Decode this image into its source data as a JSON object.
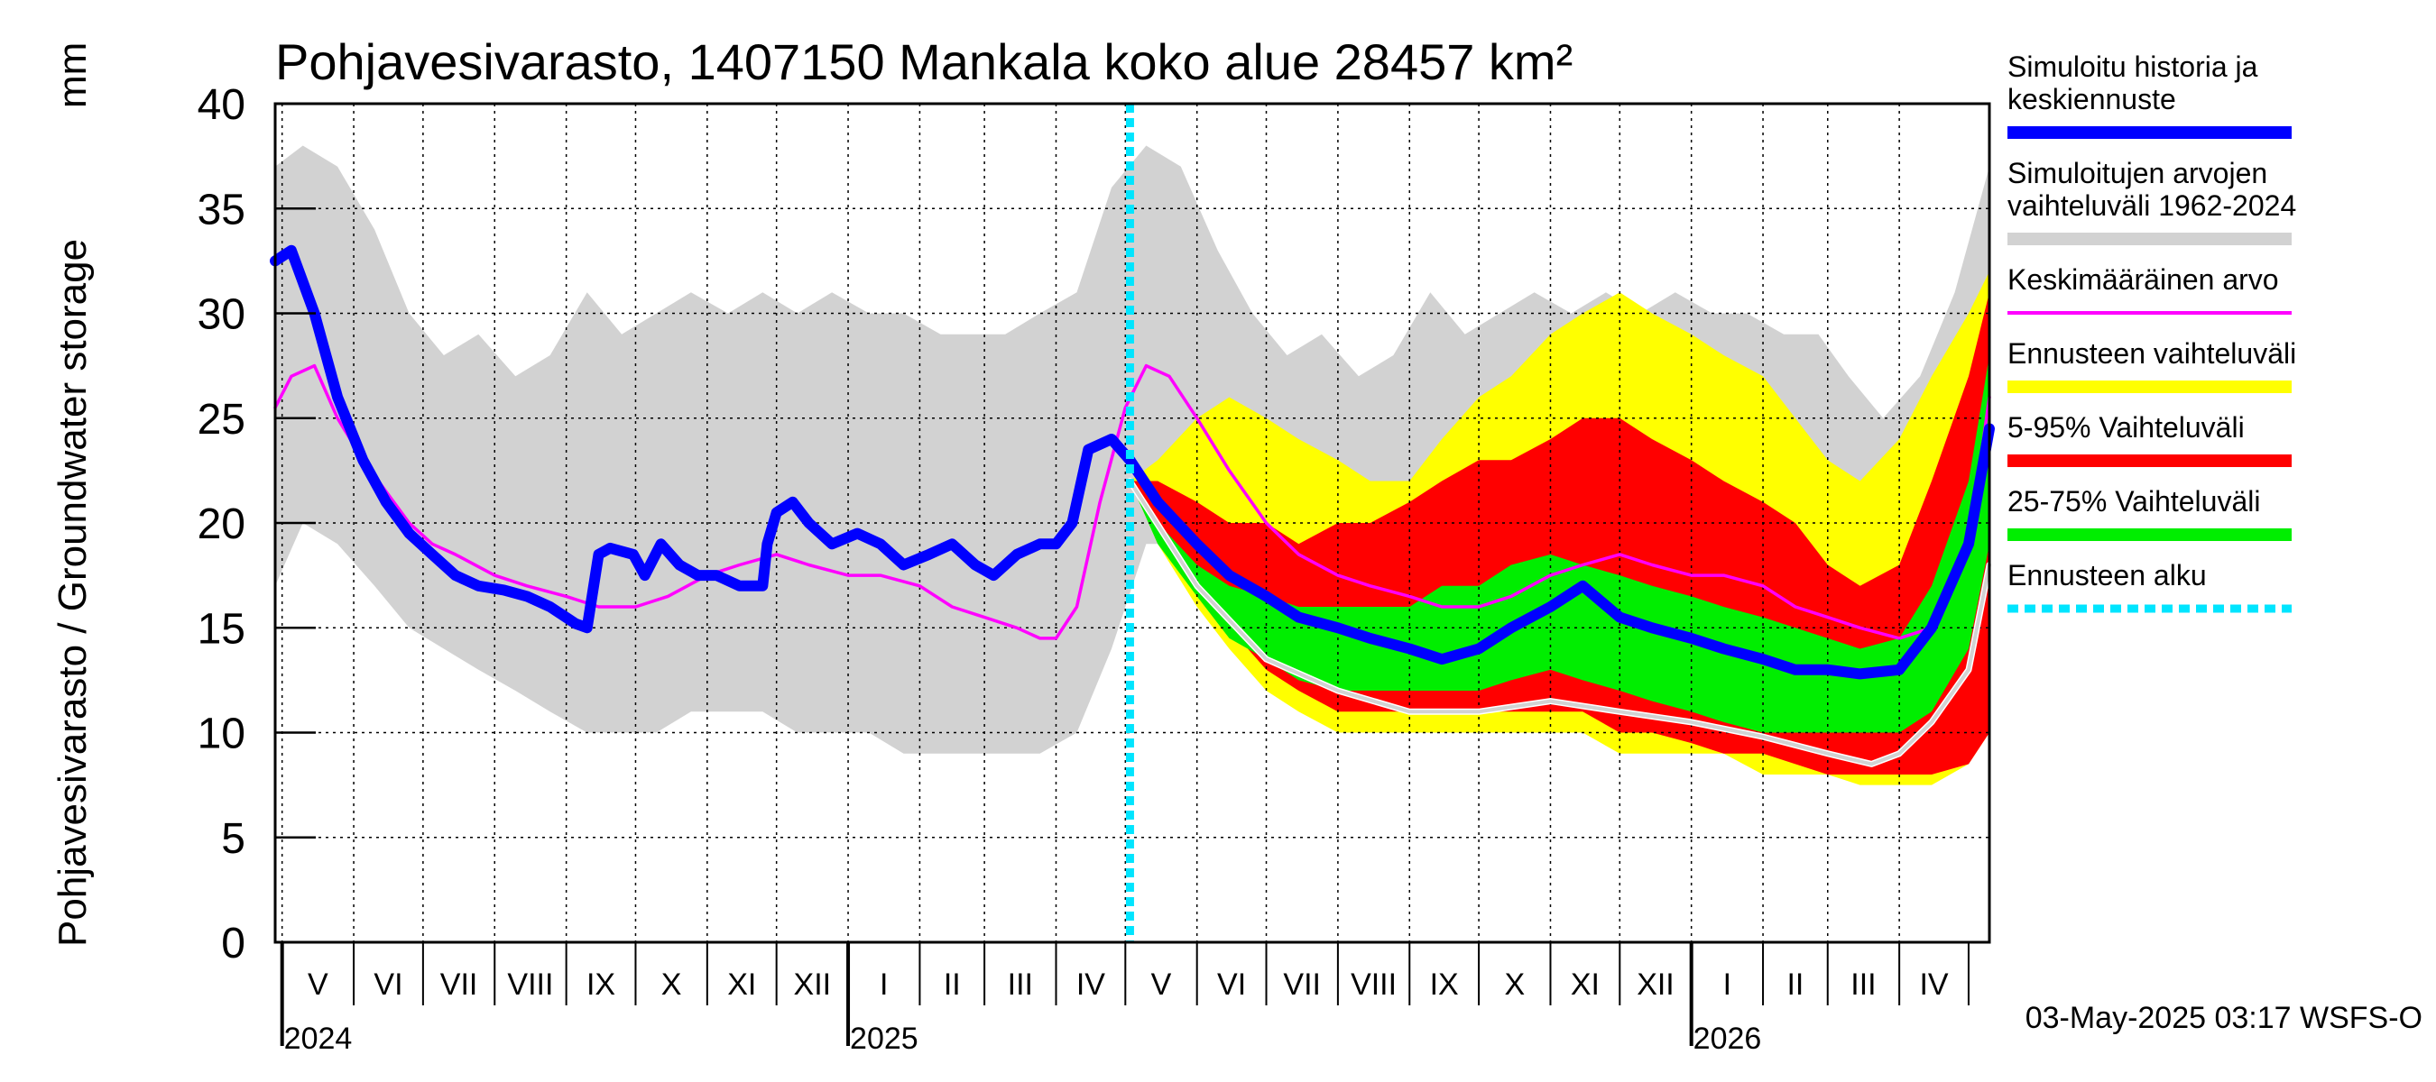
{
  "colors": {
    "history": "#0000ff",
    "simRange": "#d2d2d2",
    "mean": "#ff00ff",
    "forecastRange": "#ffff00",
    "p5_95": "#ff0000",
    "p25_75": "#00ee00",
    "forecastStart": "#00e5ff",
    "grid": "#000000"
  },
  "chart_data": {
    "type": "area",
    "title": "Pohjavesivarasto, 1407150 Mankala koko alue 28457 km²",
    "ylabel": "Pohjavesivarasto / Groundwater storage",
    "yunit": "mm",
    "ylim": [
      0,
      40
    ],
    "yticks": [
      0,
      5,
      10,
      15,
      20,
      25,
      30,
      35,
      40
    ],
    "xlim": [
      "2024-04-28",
      "2026-05-10"
    ],
    "forecast_start": "2025-05-03",
    "months": [
      {
        "label": "V",
        "start": "2024-05-01"
      },
      {
        "label": "VI",
        "start": "2024-06-01"
      },
      {
        "label": "VII",
        "start": "2024-07-01"
      },
      {
        "label": "VIII",
        "start": "2024-08-01"
      },
      {
        "label": "IX",
        "start": "2024-09-01"
      },
      {
        "label": "X",
        "start": "2024-10-01"
      },
      {
        "label": "XI",
        "start": "2024-11-01"
      },
      {
        "label": "XII",
        "start": "2024-12-01"
      },
      {
        "label": "I",
        "start": "2025-01-01"
      },
      {
        "label": "II",
        "start": "2025-02-01"
      },
      {
        "label": "III",
        "start": "2025-03-01"
      },
      {
        "label": "IV",
        "start": "2025-04-01"
      },
      {
        "label": "V",
        "start": "2025-05-01"
      },
      {
        "label": "VI",
        "start": "2025-06-01"
      },
      {
        "label": "VII",
        "start": "2025-07-01"
      },
      {
        "label": "VIII",
        "start": "2025-08-01"
      },
      {
        "label": "IX",
        "start": "2025-09-01"
      },
      {
        "label": "X",
        "start": "2025-10-01"
      },
      {
        "label": "XI",
        "start": "2025-11-01"
      },
      {
        "label": "XII",
        "start": "2025-12-01"
      },
      {
        "label": "I",
        "start": "2026-01-01"
      },
      {
        "label": "II",
        "start": "2026-02-01"
      },
      {
        "label": "III",
        "start": "2026-03-01"
      },
      {
        "label": "IV",
        "start": "2026-04-01"
      }
    ],
    "years": [
      {
        "label": "2024",
        "start": "2024-05-01"
      },
      {
        "label": "2025",
        "start": "2025-01-01"
      },
      {
        "label": "2026",
        "start": "2026-01-01"
      }
    ],
    "sim_range": {
      "name": "Simuloitujen arvojen vaihteluväli 1962-2024",
      "dates": [
        "2024-04-28",
        "2024-05-10",
        "2024-05-25",
        "2024-06-10",
        "2024-06-25",
        "2024-07-10",
        "2024-07-25",
        "2024-08-10",
        "2024-08-25",
        "2024-09-10",
        "2024-09-25",
        "2024-10-10",
        "2024-10-25",
        "2024-11-10",
        "2024-11-25",
        "2024-12-10",
        "2024-12-25",
        "2025-01-10",
        "2025-01-25",
        "2025-02-10",
        "2025-02-25",
        "2025-03-10",
        "2025-03-25",
        "2025-04-10",
        "2025-04-25",
        "2025-05-10",
        "2025-05-25",
        "2025-06-10",
        "2025-06-25",
        "2025-07-10",
        "2025-07-25",
        "2025-08-10",
        "2025-08-25",
        "2025-09-10",
        "2025-09-25",
        "2025-10-10",
        "2025-10-25",
        "2025-11-10",
        "2025-11-25",
        "2025-12-10",
        "2025-12-25",
        "2026-01-10",
        "2026-01-25",
        "2026-02-10",
        "2026-02-25",
        "2026-03-10",
        "2026-03-25",
        "2026-04-10",
        "2026-04-25",
        "2026-05-10"
      ],
      "upper": [
        37,
        38,
        37,
        34,
        30,
        28,
        29,
        27,
        28,
        31,
        29,
        30,
        31,
        30,
        31,
        30,
        31,
        30,
        30,
        29,
        29,
        29,
        30,
        31,
        36,
        38,
        37,
        33,
        30,
        28,
        29,
        27,
        28,
        31,
        29,
        30,
        31,
        30,
        31,
        30,
        31,
        30,
        30,
        29,
        29,
        27,
        25,
        27,
        31,
        37
      ],
      "lower": [
        17,
        20,
        19,
        17,
        15,
        14,
        13,
        12,
        11,
        10,
        10,
        10,
        11,
        11,
        11,
        10,
        10,
        10,
        9,
        9,
        9,
        9,
        9,
        10,
        14,
        19,
        19,
        17,
        15,
        14,
        13,
        12,
        11,
        10,
        10,
        10,
        11,
        11,
        11,
        10,
        10,
        10,
        9,
        9,
        9,
        9,
        9,
        9,
        11,
        17
      ]
    },
    "forecast_dates": [
      "2025-05-03",
      "2025-05-15",
      "2025-06-01",
      "2025-06-15",
      "2025-07-01",
      "2025-07-15",
      "2025-08-01",
      "2025-08-15",
      "2025-09-01",
      "2025-09-15",
      "2025-10-01",
      "2025-10-15",
      "2025-11-01",
      "2025-11-15",
      "2025-12-01",
      "2025-12-15",
      "2026-01-01",
      "2026-01-15",
      "2026-02-01",
      "2026-02-15",
      "2026-03-01",
      "2026-03-15",
      "2026-04-01",
      "2026-04-15",
      "2026-05-01",
      "2026-05-10"
    ],
    "forecast_range": {
      "name": "Ennusteen vaihteluväli",
      "upper": [
        22,
        23,
        25,
        26,
        25,
        24,
        23,
        22,
        22,
        24,
        26,
        27,
        29,
        30,
        31,
        30,
        29,
        28,
        27,
        25,
        23,
        22,
        24,
        27,
        30,
        32
      ],
      "lower": [
        22,
        19,
        16,
        14,
        12,
        11,
        10,
        10,
        10,
        10,
        10,
        10,
        10,
        10,
        9,
        9,
        9,
        9,
        8,
        8,
        8,
        7.5,
        7.5,
        7.5,
        8.5,
        10
      ]
    },
    "p5_95": {
      "name": "5-95% Vaihteluväli",
      "upper": [
        22,
        22,
        21,
        20,
        20,
        19,
        20,
        20,
        21,
        22,
        23,
        23,
        24,
        25,
        25,
        24,
        23,
        22,
        21,
        20,
        18,
        17,
        18,
        22,
        27,
        31
      ],
      "lower": [
        22,
        20,
        17,
        15,
        13,
        12,
        11,
        11,
        11,
        11,
        11,
        11,
        11,
        11,
        10,
        10,
        9.5,
        9,
        9,
        8.5,
        8,
        8,
        8,
        8,
        8.5,
        10
      ]
    },
    "p25_75": {
      "name": "25-75% Vaihteluväli",
      "upper": [
        22,
        20,
        18,
        17,
        16.5,
        16,
        16,
        16,
        16,
        17,
        17,
        18,
        18.5,
        18,
        17.5,
        17,
        16.5,
        16,
        15.5,
        15,
        14.5,
        14,
        14.5,
        17,
        22,
        28
      ],
      "lower": [
        22,
        19,
        16.5,
        14.5,
        13.5,
        12.5,
        12,
        12,
        12,
        12,
        12,
        12.5,
        13,
        12.5,
        12,
        11.5,
        11,
        10.5,
        10,
        10,
        10,
        10,
        10,
        11,
        14,
        19
      ]
    },
    "history": {
      "name": "Simuloitu historia ja keskiennuste",
      "dates": [
        "2024-04-28",
        "2024-05-05",
        "2024-05-15",
        "2024-05-25",
        "2024-06-05",
        "2024-06-15",
        "2024-06-25",
        "2024-07-05",
        "2024-07-15",
        "2024-07-25",
        "2024-08-05",
        "2024-08-15",
        "2024-08-25",
        "2024-09-05",
        "2024-09-10",
        "2024-09-15",
        "2024-09-20",
        "2024-09-30",
        "2024-10-05",
        "2024-10-12",
        "2024-10-20",
        "2024-10-28",
        "2024-11-05",
        "2024-11-15",
        "2024-11-25",
        "2024-11-27",
        "2024-12-01",
        "2024-12-08",
        "2024-12-15",
        "2024-12-25",
        "2025-01-05",
        "2025-01-15",
        "2025-01-25",
        "2025-02-05",
        "2025-02-15",
        "2025-02-25",
        "2025-03-05",
        "2025-03-15",
        "2025-03-25",
        "2025-04-01",
        "2025-04-08",
        "2025-04-15",
        "2025-04-25",
        "2025-05-03",
        "2025-05-15",
        "2025-06-01",
        "2025-06-15",
        "2025-07-01",
        "2025-07-15",
        "2025-08-01",
        "2025-08-15",
        "2025-09-01",
        "2025-09-15",
        "2025-10-01",
        "2025-10-15",
        "2025-11-01",
        "2025-11-15",
        "2025-12-01",
        "2025-12-15",
        "2026-01-01",
        "2026-01-15",
        "2026-02-01",
        "2026-02-15",
        "2026-03-01",
        "2026-03-15",
        "2026-04-01",
        "2026-04-15",
        "2026-05-01",
        "2026-05-10"
      ],
      "values": [
        32.5,
        33,
        30,
        26,
        23,
        21,
        19.5,
        18.5,
        17.5,
        17,
        16.8,
        16.5,
        16,
        15.2,
        15,
        18.5,
        18.8,
        18.5,
        17.5,
        19,
        18,
        17.5,
        17.5,
        17,
        17,
        19,
        20.5,
        21,
        20,
        19,
        19.5,
        19,
        18,
        18.5,
        19,
        18,
        17.5,
        18.5,
        19,
        19,
        20,
        23.5,
        24,
        23,
        21,
        19,
        17.5,
        16.5,
        15.5,
        15,
        14.5,
        14,
        13.5,
        14,
        15,
        16,
        17,
        15.5,
        15,
        14.5,
        14,
        13.5,
        13,
        13,
        12.8,
        13,
        15,
        19,
        24.5
      ]
    },
    "mean": {
      "name": "Keskimääräinen arvo",
      "dates": [
        "2024-04-28",
        "2024-05-05",
        "2024-05-15",
        "2024-05-25",
        "2024-06-05",
        "2024-06-15",
        "2024-06-25",
        "2024-07-05",
        "2024-07-15",
        "2024-08-01",
        "2024-08-15",
        "2024-09-01",
        "2024-09-15",
        "2024-10-01",
        "2024-10-15",
        "2024-11-01",
        "2024-11-15",
        "2024-12-01",
        "2024-12-15",
        "2025-01-01",
        "2025-01-15",
        "2025-02-01",
        "2025-02-15",
        "2025-03-01",
        "2025-03-15",
        "2025-03-25",
        "2025-04-01",
        "2025-04-10",
        "2025-04-20",
        "2025-05-01",
        "2025-05-10",
        "2025-05-20",
        "2025-06-01",
        "2025-06-15",
        "2025-07-01",
        "2025-07-15",
        "2025-08-01",
        "2025-08-15",
        "2025-09-01",
        "2025-09-15",
        "2025-10-01",
        "2025-10-15",
        "2025-11-01",
        "2025-11-15",
        "2025-12-01",
        "2025-12-15",
        "2026-01-01",
        "2026-01-15",
        "2026-02-01",
        "2026-02-15",
        "2026-03-01",
        "2026-03-15",
        "2026-04-01",
        "2026-04-15",
        "2026-05-01",
        "2026-05-10"
      ],
      "values": [
        25.5,
        27,
        27.5,
        25,
        23,
        21.5,
        20,
        19,
        18.5,
        17.5,
        17,
        16.5,
        16,
        16,
        16.5,
        17.5,
        18,
        18.5,
        18,
        17.5,
        17.5,
        17,
        16,
        15.5,
        15,
        14.5,
        14.5,
        16,
        21,
        25.5,
        27.5,
        27,
        25,
        22.5,
        20,
        18.5,
        17.5,
        17,
        16.5,
        16,
        16,
        16.5,
        17.5,
        18,
        18.5,
        18,
        17.5,
        17.5,
        17,
        16,
        15.5,
        15,
        14.5,
        15,
        19,
        26
      ]
    },
    "min_trace": {
      "dates": [
        "2025-05-03",
        "2025-06-01",
        "2025-07-01",
        "2025-08-01",
        "2025-09-01",
        "2025-10-01",
        "2025-11-01",
        "2025-12-01",
        "2026-01-01",
        "2026-02-01",
        "2026-03-01",
        "2026-03-20",
        "2026-04-01",
        "2026-04-15",
        "2026-05-01",
        "2026-05-10"
      ],
      "values": [
        22,
        17,
        13.5,
        12,
        11,
        11,
        11.5,
        11,
        10.5,
        9.8,
        9,
        8.5,
        9,
        10.5,
        13,
        18
      ]
    },
    "legend": [
      {
        "key": "history",
        "lines": [
          "Simuloitu historia ja",
          "keskiennuste"
        ]
      },
      {
        "key": "simRange",
        "lines": [
          "Simuloitujen arvojen",
          "vaihteluväli 1962-2024"
        ]
      },
      {
        "key": "mean",
        "lines": [
          "Keskimääräinen arvo"
        ]
      },
      {
        "key": "forecastRange",
        "lines": [
          "Ennusteen vaihteluväli"
        ]
      },
      {
        "key": "p5_95",
        "lines": [
          "5-95% Vaihteluväli"
        ]
      },
      {
        "key": "p25_75",
        "lines": [
          "25-75% Vaihteluväli"
        ]
      },
      {
        "key": "forecastStart",
        "lines": [
          "Ennusteen alku"
        ]
      }
    ]
  },
  "footer": "03-May-2025 03:17 WSFS-O"
}
